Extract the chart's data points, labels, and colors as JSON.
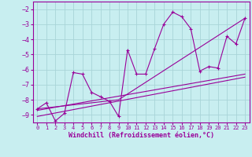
{
  "title": "",
  "xlabel": "Windchill (Refroidissement éolien,°C)",
  "ylabel": "",
  "bg_color": "#c8eef0",
  "grid_color": "#a8d4d8",
  "line_color": "#990099",
  "xlim": [
    -0.5,
    23.5
  ],
  "ylim": [
    -9.5,
    -1.5
  ],
  "yticks": [
    -9,
    -8,
    -7,
    -6,
    -5,
    -4,
    -3,
    -2
  ],
  "xticks": [
    0,
    1,
    2,
    3,
    4,
    5,
    6,
    7,
    8,
    9,
    10,
    11,
    12,
    13,
    14,
    15,
    16,
    17,
    18,
    19,
    20,
    21,
    22,
    23
  ],
  "line1_x": [
    0,
    1,
    2,
    3,
    4,
    5,
    6,
    7,
    8,
    9,
    10,
    11,
    12,
    13,
    14,
    15,
    16,
    17,
    18,
    19,
    20,
    21,
    22,
    23
  ],
  "line1_y": [
    -8.6,
    -8.2,
    -9.4,
    -8.9,
    -6.2,
    -6.3,
    -7.5,
    -7.8,
    -8.1,
    -9.1,
    -4.7,
    -6.3,
    -6.3,
    -4.6,
    -3.0,
    -2.2,
    -2.5,
    -3.3,
    -6.1,
    -5.8,
    -5.9,
    -3.8,
    -4.3,
    -2.6
  ],
  "line2_x": [
    0,
    9,
    23
  ],
  "line2_y": [
    -8.6,
    -8.0,
    -2.6
  ],
  "line3_x": [
    0,
    23
  ],
  "line3_y": [
    -8.7,
    -6.3
  ],
  "line4_x": [
    0,
    23
  ],
  "line4_y": [
    -9.1,
    -6.5
  ]
}
